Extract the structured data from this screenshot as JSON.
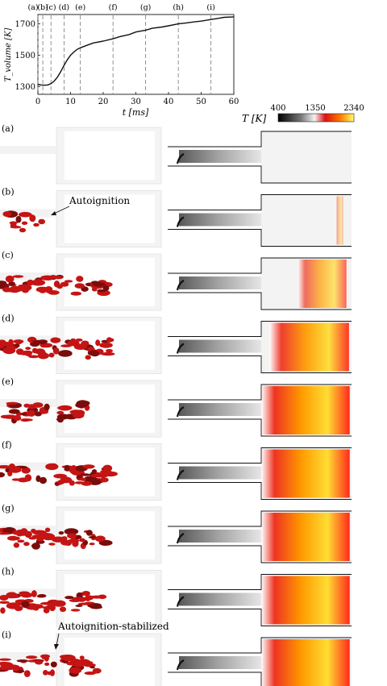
{
  "chart_data": {
    "type": "line",
    "xlabel": "t [ms]",
    "ylabel": "T_volume [K]",
    "xlim": [
      0,
      60
    ],
    "ylim": [
      1250,
      1760
    ],
    "xticks": [
      "0",
      "10",
      "20",
      "30",
      "40",
      "50",
      "60"
    ],
    "yticks": [
      "1300",
      "1500",
      "1700"
    ],
    "grid": false,
    "x": [
      0,
      1,
      2,
      3,
      4,
      5,
      6,
      7,
      8,
      9,
      10,
      11,
      12,
      13,
      15,
      17,
      20,
      23,
      25,
      28,
      30,
      33,
      35,
      38,
      40,
      43,
      45,
      48,
      50,
      53,
      55,
      57,
      60
    ],
    "y": [
      1315,
      1310,
      1308,
      1310,
      1318,
      1335,
      1360,
      1395,
      1435,
      1470,
      1500,
      1520,
      1537,
      1547,
      1563,
      1578,
      1590,
      1605,
      1618,
      1632,
      1648,
      1660,
      1672,
      1680,
      1688,
      1700,
      1705,
      1713,
      1718,
      1728,
      1735,
      1742,
      1745
    ],
    "markers": [
      {
        "label": "(a)",
        "t": 0
      },
      {
        "label": "(b)",
        "t": 1.5
      },
      {
        "label": "(c)",
        "t": 4
      },
      {
        "label": "(d)",
        "t": 8
      },
      {
        "label": "(e)",
        "t": 13
      },
      {
        "label": "(f)",
        "t": 23
      },
      {
        "label": "(g)",
        "t": 33
      },
      {
        "label": "(h)",
        "t": 43
      },
      {
        "label": "(i)",
        "t": 53
      }
    ]
  },
  "colorbar": {
    "label": "T [K]",
    "ticks": [
      "400",
      "1350",
      "2340"
    ],
    "stops": [
      "#000000",
      "#777777",
      "#f2f2f2",
      "#dd1111",
      "#ff7a00",
      "#ffff66"
    ]
  },
  "snapshots": [
    {
      "label": "(a)",
      "flame": 0.0,
      "iso": 0.0
    },
    {
      "label": "(b)",
      "flame": 0.08,
      "iso": 0.2
    },
    {
      "label": "(c)",
      "flame": 0.55,
      "iso": 0.85
    },
    {
      "label": "(d)",
      "flame": 0.9,
      "iso": 0.9
    },
    {
      "label": "(e)",
      "flame": 1.0,
      "iso": 0.65
    },
    {
      "label": "(f)",
      "flame": 1.0,
      "iso": 0.9
    },
    {
      "label": "(g)",
      "flame": 1.0,
      "iso": 0.85
    },
    {
      "label": "(h)",
      "flame": 1.0,
      "iso": 0.8
    },
    {
      "label": "(i)",
      "flame": 1.0,
      "iso": 0.75
    }
  ],
  "annotations": {
    "autoignition": "Autoignition",
    "stabilized": "Autoignition-stabilized"
  }
}
